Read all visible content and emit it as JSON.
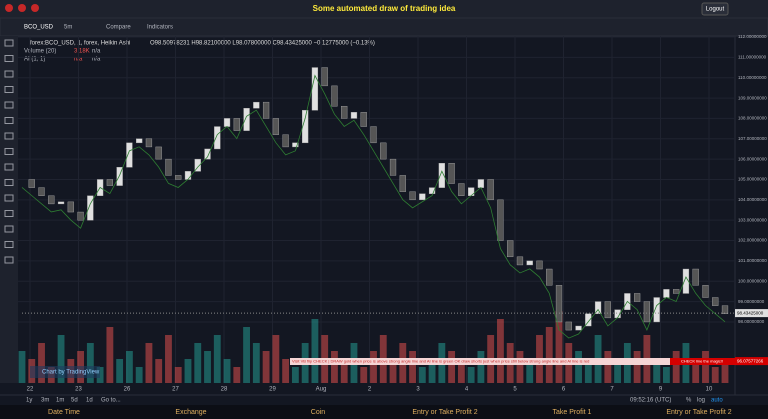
{
  "header": {
    "title": "Some automated draw of trading idea",
    "logout": "Logout"
  },
  "toolbar": {
    "symbol": "BCO_USD",
    "interval": "5m",
    "compare": "Compare",
    "indicators": "Indicators"
  },
  "legend": {
    "symbol": "forex:BCO_USD, 1, forex, Heikin Ashi",
    "ohlc": "O98.50978231 H98.82100000 L98.07800000 C98.43425000 −0.12775000 (−0.13%)",
    "volume": "Volume (20)",
    "volume_value": "3.18K",
    "volume_na": "n/a",
    "ai": "AI (1, 1)",
    "ai_na1": "n/a",
    "ai_na2": "n/a"
  },
  "chart_data": {
    "type": "candlestick",
    "close": [
      105.0,
      104.6,
      104.2,
      103.8,
      103.9,
      103.4,
      103.0,
      104.2,
      105.0,
      104.7,
      105.6,
      106.8,
      107.0,
      106.6,
      106.0,
      105.2,
      105.0,
      105.4,
      106.0,
      106.5,
      107.6,
      108.0,
      107.4,
      108.5,
      108.8,
      108.0,
      107.2,
      106.6,
      106.8,
      108.4,
      110.5,
      109.6,
      108.6,
      108.0,
      108.3,
      107.6,
      106.8,
      106.0,
      105.2,
      104.4,
      104.0,
      104.3,
      104.6,
      105.8,
      104.8,
      104.2,
      104.6,
      105.0,
      104.0,
      102.0,
      101.2,
      100.8,
      101.0,
      100.6,
      99.8,
      98.0,
      97.6,
      97.8,
      98.4,
      99.0,
      98.2,
      98.6,
      99.4,
      99.0,
      98.0,
      99.2,
      99.6,
      99.4,
      100.6,
      99.8,
      99.2,
      98.8,
      98.4
    ],
    "volume": [
      4,
      3,
      5,
      2,
      6,
      3,
      4,
      5,
      2,
      7,
      3,
      4,
      2,
      5,
      3,
      6,
      2,
      3,
      5,
      4,
      6,
      3,
      2,
      7,
      5,
      4,
      6,
      3,
      2,
      5,
      8,
      6,
      4,
      3,
      5,
      2,
      4,
      6,
      3,
      5,
      4,
      2,
      3,
      5,
      4,
      3,
      2,
      4,
      6,
      8,
      5,
      4,
      3,
      6,
      7,
      9,
      5,
      4,
      3,
      6,
      4,
      3,
      5,
      4,
      6,
      3,
      2,
      4,
      5,
      3,
      4,
      2,
      3
    ],
    "ylim": [
      95,
      112.05
    ],
    "yticks": [
      {
        "value": 98,
        "label": "98.00000000"
      },
      {
        "value": 99,
        "label": "99.00000000"
      },
      {
        "value": 100,
        "label": "100.00000000"
      },
      {
        "value": 101,
        "label": "101.00000000"
      },
      {
        "value": 102,
        "label": "102.00000000"
      },
      {
        "value": 103,
        "label": "103.00000000"
      },
      {
        "value": 104,
        "label": "104.00000000"
      },
      {
        "value": 105,
        "label": "105.00000000"
      },
      {
        "value": 106,
        "label": "106.00000000"
      },
      {
        "value": 107,
        "label": "107.00000000"
      },
      {
        "value": 108,
        "label": "108.00000000"
      },
      {
        "value": 109,
        "label": "109.00000000"
      },
      {
        "value": 110,
        "label": "110.00000000"
      },
      {
        "value": 111,
        "label": "111.00000000"
      },
      {
        "value": 112,
        "label": "112.00000000"
      }
    ],
    "last_price": {
      "value": 98.43425,
      "label": "98.43425000"
    },
    "line_price": {
      "value": 96.07577266,
      "label": "96.07577266"
    },
    "x_labels": [
      "22",
      "23",
      "26",
      "27",
      "28",
      "29",
      "Aug",
      "2",
      "3",
      "4",
      "5",
      "6",
      "7",
      "9",
      "10"
    ]
  },
  "banner": {
    "left": "Visit VB flip CHECK | DRAW gold when price is above strong angle line and AI line is green OK draw shorts just when price still below strong angle line and AI line is red",
    "right": "CHECK line the magic!!"
  },
  "watermark": "Chart by TradingView",
  "ranges": [
    "1y",
    "3m",
    "1m",
    "5d",
    "1d",
    "Go to..."
  ],
  "status": {
    "time": "09:52:16 (UTC)",
    "percent": "%",
    "log": "log",
    "auto": "auto"
  },
  "footer": [
    "Date Time",
    "Exchange",
    "Coin",
    "Entry or Take Profit 2",
    "Take Profit 1",
    "Entry or Take Profit 2"
  ]
}
